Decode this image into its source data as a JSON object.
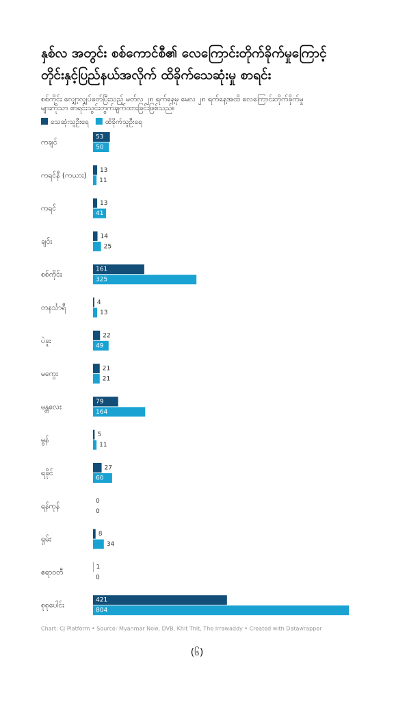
{
  "chart_data": {
    "type": "bar",
    "orientation": "horizontal",
    "title": [
      "နှစ်လ အတွင်း စစ်ကောင်စီ၏ လေကြောင်းတိုက်ခိုက်မှုကြောင့်",
      "တိုင်းနှင့်ပြည်နယ်အလိုက် ထိခိုက်သေဆုံးမှု စာရင်း"
    ],
    "subtitle": [
      "စစ်ကိုင်း လျှော့လျှပ်ခတ်ပြီးသည့် မတ်လ ၂၈ ရက်နေ့မှ မေလ ၂၈ ရက်နေ့အထိ လေကြောင်းတိုက်ခိုက်မှု",
      "များကိုသာ စာရင်းသွင်းတွက်ချက်ထားခြင်းဖြစ်သည်။"
    ],
    "categories": [
      "ကချင်",
      "ကရင်နီ (ကယား)",
      "ကရင်",
      "ချင်း",
      "စစ်ကိုင်း",
      "တနင်္သာရီ",
      "ပဲခူး",
      "မကွေး",
      "မန္တလေး",
      "မွန်",
      "ရခိုင်",
      "ရန်ကုန်",
      "ရှမ်း",
      "ဧရာဝတီ",
      "စုစုပေါင်း"
    ],
    "series": [
      {
        "name": "သေဆုံးသူဦးရေ",
        "color": "#124e78",
        "values": [
          53,
          13,
          13,
          14,
          161,
          4,
          22,
          21,
          79,
          5,
          27,
          0,
          8,
          1,
          421
        ]
      },
      {
        "name": "ထိခိုက်သူဦးရေ",
        "color": "#1aa3d2",
        "values": [
          50,
          11,
          41,
          25,
          325,
          13,
          49,
          21,
          164,
          11,
          60,
          0,
          34,
          0,
          804
        ]
      }
    ],
    "footer": "Chart: CJ Platform • Source: Myanmar Now, DVB, Khit Thit, The Irrawaddy • Created with Datawrapper",
    "page_number": "(၆)"
  }
}
